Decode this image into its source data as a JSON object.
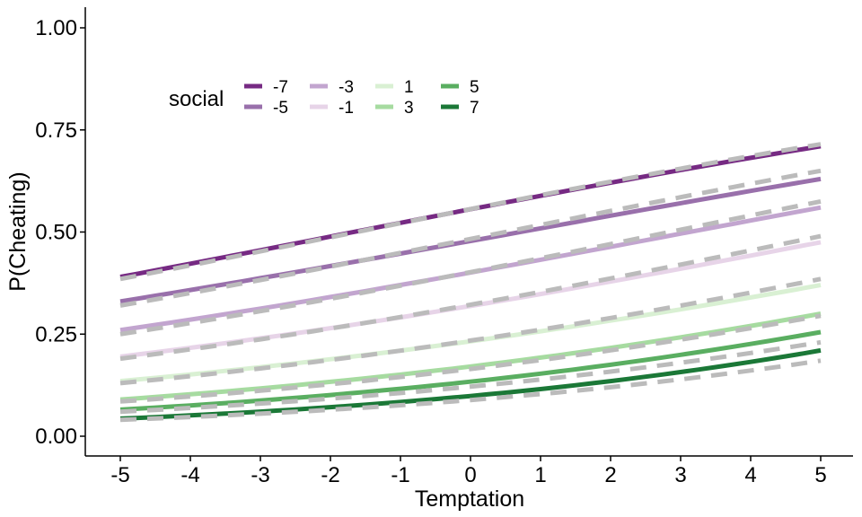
{
  "chart_data": {
    "type": "line",
    "title": "",
    "xlabel": "Temptation",
    "ylabel": "P(Cheating)",
    "xlim": [
      -5,
      5
    ],
    "ylim": [
      0,
      1
    ],
    "x_ticks": [
      -5,
      -4,
      -3,
      -2,
      -1,
      0,
      1,
      2,
      3,
      4,
      5
    ],
    "x_tick_labels": [
      "-5",
      "-4",
      "-3",
      "-2",
      "-1",
      "0",
      "1",
      "2",
      "3",
      "4",
      "5"
    ],
    "y_ticks": [
      0,
      0.25,
      0.5,
      0.75,
      1
    ],
    "y_tick_labels": [
      "0.00",
      "0.25",
      "0.50",
      "0.75",
      "1.00"
    ],
    "grid": false,
    "legend": {
      "title": "social",
      "placement": "top-left inside plot, horizontal, two rows"
    },
    "series": [
      {
        "name": "-7",
        "color": "#762a83",
        "solid": [
          0.39,
          0.71
        ],
        "dashed": [
          0.385,
          0.715
        ]
      },
      {
        "name": "-5",
        "color": "#9970ab",
        "solid": [
          0.33,
          0.63
        ],
        "dashed": [
          0.32,
          0.65
        ]
      },
      {
        "name": "-3",
        "color": "#c2a5cf",
        "solid": [
          0.26,
          0.56
        ],
        "dashed": [
          0.25,
          0.575
        ]
      },
      {
        "name": "-1",
        "color": "#e7d4e8",
        "solid": [
          0.195,
          0.475
        ],
        "dashed": [
          0.19,
          0.49
        ]
      },
      {
        "name": "1",
        "color": "#d9f0d3",
        "solid": [
          0.135,
          0.37
        ],
        "dashed": [
          0.13,
          0.385
        ]
      },
      {
        "name": "3",
        "color": "#a6dba0",
        "solid": [
          0.09,
          0.3
        ],
        "dashed": [
          0.085,
          0.295
        ]
      },
      {
        "name": "5",
        "color": "#5aae61",
        "solid": [
          0.065,
          0.255
        ],
        "dashed": [
          0.06,
          0.23
        ]
      },
      {
        "name": "7",
        "color": "#1b7837",
        "solid": [
          0.043,
          0.21
        ],
        "dashed": [
          0.04,
          0.185
        ]
      }
    ],
    "dashed_line_color": "#bbbbbb",
    "axis_color": "#000000"
  }
}
